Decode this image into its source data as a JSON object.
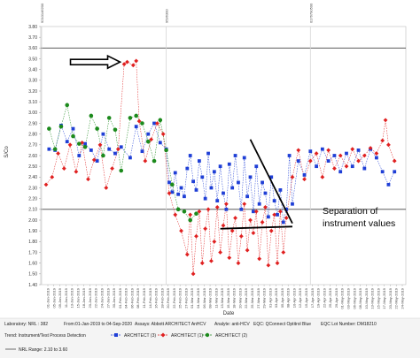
{
  "chart_data": {
    "type": "scatter",
    "xlabel": "Date",
    "ylabel": "S/Co",
    "ylim": [
      1.4,
      3.8
    ],
    "yticks": [
      "3.80",
      "3.70",
      "3.60",
      "3.50",
      "3.40",
      "3.30",
      "3.20",
      "3.10",
      "3.00",
      "2.90",
      "2.80",
      "2.70",
      "2.60",
      "2.50",
      "2.40",
      "2.30",
      "2.20",
      "2.10",
      "2.00",
      "1.90",
      "1.80",
      "1.70",
      "1.60",
      "1.50",
      "1.40"
    ],
    "reference_lines": [
      3.6,
      2.1
    ],
    "lot_markers": [
      {
        "label": "9210146200",
        "x_index": 0
      },
      {
        "label": "9536300",
        "x_index": 40
      },
      {
        "label": "0176790500",
        "x_index": 88
      }
    ],
    "xtick_labels": [
      "01-Jan-2019",
      "05-Jan-2019",
      "09-Jan-2019",
      "11-Jan-2019",
      "13-Jan-2019",
      "15-Jan-2019",
      "18-Jan-2019",
      "20-Jan-2019",
      "22-Jan-2019",
      "24-Jan-2019",
      "27-Jan-2019",
      "30-Jan-2019",
      "01-Feb-2019",
      "04-Feb-2019",
      "06-Feb-2019",
      "08-Feb-2019",
      "11-Feb-2019",
      "14-Feb-2019",
      "16-Feb-2019",
      "18-Feb-2019",
      "20-Feb-2019",
      "22-Feb-2019",
      "25-Feb-2019",
      "27-Feb-2019",
      "01-Mar-2019",
      "04-Mar-2019",
      "06-Mar-2019",
      "08-Mar-2019",
      "11-Mar-2019",
      "13-Mar-2019",
      "15-Mar-2019",
      "18-Mar-2019",
      "20-Mar-2019",
      "22-Mar-2019",
      "25-Mar-2019",
      "27-Mar-2019",
      "29-Mar-2019",
      "01-Apr-2019",
      "03-Apr-2019",
      "05-Apr-2019",
      "08-Apr-2019",
      "10-Apr-2019",
      "12-Apr-2019",
      "15-Apr-2019",
      "17-Apr-2019",
      "19-Apr-2019",
      "22-Apr-2019",
      "25-Apr-2019",
      "29-Apr-2019",
      "01-May-2019",
      "03-May-2019",
      "06-May-2019",
      "08-May-2019",
      "10-May-2019",
      "13-May-2019",
      "15-May-2019",
      "17-May-2019",
      "20-May-2019",
      "22-May-2019",
      "24-May-2019"
    ],
    "series": [
      {
        "name": "ARCHITECT (3)",
        "color": "#1f3fd6",
        "marker": "square",
        "points": [
          [
            1,
            2.66
          ],
          [
            3,
            2.65
          ],
          [
            5,
            2.88
          ],
          [
            7,
            2.73
          ],
          [
            9,
            2.85
          ],
          [
            11,
            2.6
          ],
          [
            13,
            2.71
          ],
          [
            15,
            2.65
          ],
          [
            17,
            2.55
          ],
          [
            19,
            2.8
          ],
          [
            21,
            2.66
          ],
          [
            23,
            2.62
          ],
          [
            25,
            2.68
          ],
          [
            28,
            2.58
          ],
          [
            30,
            2.87
          ],
          [
            32,
            2.64
          ],
          [
            34,
            2.8
          ],
          [
            36,
            2.9
          ],
          [
            38,
            2.72
          ],
          [
            40,
            2.66
          ],
          [
            41,
            2.35
          ],
          [
            42,
            2.26
          ],
          [
            43,
            2.44
          ],
          [
            44,
            2.24
          ],
          [
            45,
            2.3
          ],
          [
            46,
            2.22
          ],
          [
            47,
            2.48
          ],
          [
            48,
            2.6
          ],
          [
            49,
            2.36
          ],
          [
            50,
            2.28
          ],
          [
            51,
            2.55
          ],
          [
            52,
            2.4
          ],
          [
            53,
            2.2
          ],
          [
            54,
            2.62
          ],
          [
            55,
            2.3
          ],
          [
            56,
            2.45
          ],
          [
            57,
            2.18
          ],
          [
            58,
            2.5
          ],
          [
            59,
            2.25
          ],
          [
            60,
            2.1
          ],
          [
            61,
            2.52
          ],
          [
            62,
            2.3
          ],
          [
            63,
            2.6
          ],
          [
            64,
            2.35
          ],
          [
            65,
            2.1
          ],
          [
            66,
            2.58
          ],
          [
            67,
            2.22
          ],
          [
            68,
            2.4
          ],
          [
            69,
            2.08
          ],
          [
            70,
            2.5
          ],
          [
            71,
            2.15
          ],
          [
            72,
            2.35
          ],
          [
            73,
            2.25
          ],
          [
            74,
            2.03
          ],
          [
            75,
            2.4
          ],
          [
            76,
            2.18
          ],
          [
            77,
            2.05
          ],
          [
            78,
            2.28
          ],
          [
            79,
            1.98
          ],
          [
            80,
            2.1
          ],
          [
            81,
            2.6
          ],
          [
            82,
            2.15
          ],
          [
            84,
            2.55
          ],
          [
            86,
            2.42
          ],
          [
            88,
            2.64
          ],
          [
            90,
            2.5
          ],
          [
            92,
            2.66
          ],
          [
            94,
            2.55
          ],
          [
            96,
            2.6
          ],
          [
            98,
            2.45
          ],
          [
            100,
            2.62
          ],
          [
            102,
            2.5
          ],
          [
            104,
            2.65
          ],
          [
            106,
            2.48
          ],
          [
            108,
            2.66
          ],
          [
            110,
            2.58
          ],
          [
            112,
            2.45
          ],
          [
            114,
            2.33
          ],
          [
            116,
            2.45
          ]
        ]
      },
      {
        "name": "ARCHITECT (1)",
        "color": "#e02020",
        "marker": "diamond",
        "points": [
          [
            0,
            2.33
          ],
          [
            2,
            2.4
          ],
          [
            4,
            2.62
          ],
          [
            6,
            2.48
          ],
          [
            8,
            2.7
          ],
          [
            10,
            2.45
          ],
          [
            12,
            2.72
          ],
          [
            14,
            2.38
          ],
          [
            16,
            2.56
          ],
          [
            18,
            2.7
          ],
          [
            20,
            2.3
          ],
          [
            22,
            2.48
          ],
          [
            24,
            2.66
          ],
          [
            26,
            3.45
          ],
          [
            27,
            3.47
          ],
          [
            29,
            3.44
          ],
          [
            30,
            3.48
          ],
          [
            31,
            2.92
          ],
          [
            33,
            2.55
          ],
          [
            35,
            2.75
          ],
          [
            37,
            2.9
          ],
          [
            39,
            2.8
          ],
          [
            41,
            2.25
          ],
          [
            43,
            2.05
          ],
          [
            45,
            1.9
          ],
          [
            47,
            1.68
          ],
          [
            48,
            2.05
          ],
          [
            49,
            1.5
          ],
          [
            50,
            1.85
          ],
          [
            51,
            2.08
          ],
          [
            52,
            1.6
          ],
          [
            53,
            1.92
          ],
          [
            54,
            2.1
          ],
          [
            55,
            1.62
          ],
          [
            56,
            1.8
          ],
          [
            57,
            2.12
          ],
          [
            58,
            1.7
          ],
          [
            59,
            1.95
          ],
          [
            60,
            2.15
          ],
          [
            61,
            1.65
          ],
          [
            62,
            1.9
          ],
          [
            63,
            2.02
          ],
          [
            64,
            1.6
          ],
          [
            65,
            1.85
          ],
          [
            66,
            2.15
          ],
          [
            67,
            1.72
          ],
          [
            68,
            2.0
          ],
          [
            69,
            1.88
          ],
          [
            70,
            2.08
          ],
          [
            71,
            1.64
          ],
          [
            72,
            1.98
          ],
          [
            73,
            2.12
          ],
          [
            74,
            1.58
          ],
          [
            75,
            1.9
          ],
          [
            76,
            2.05
          ],
          [
            77,
            1.6
          ],
          [
            78,
            2.08
          ],
          [
            79,
            1.7
          ],
          [
            80,
            2.02
          ],
          [
            82,
            2.4
          ],
          [
            84,
            2.65
          ],
          [
            86,
            2.38
          ],
          [
            88,
            2.55
          ],
          [
            90,
            2.62
          ],
          [
            92,
            2.4
          ],
          [
            94,
            2.65
          ],
          [
            96,
            2.48
          ],
          [
            98,
            2.6
          ],
          [
            100,
            2.5
          ],
          [
            102,
            2.66
          ],
          [
            104,
            2.55
          ],
          [
            106,
            2.6
          ],
          [
            108,
            2.67
          ],
          [
            110,
            2.62
          ],
          [
            112,
            2.74
          ],
          [
            113,
            2.93
          ],
          [
            114,
            2.7
          ],
          [
            116,
            2.55
          ]
        ]
      },
      {
        "name": "ARCHITECT (2)",
        "color": "#1c8a1c",
        "marker": "circle",
        "points": [
          [
            1,
            2.85
          ],
          [
            3,
            2.66
          ],
          [
            5,
            2.87
          ],
          [
            7,
            3.07
          ],
          [
            9,
            2.78
          ],
          [
            11,
            2.71
          ],
          [
            13,
            2.68
          ],
          [
            15,
            2.97
          ],
          [
            17,
            2.85
          ],
          [
            19,
            2.6
          ],
          [
            21,
            2.95
          ],
          [
            23,
            2.84
          ],
          [
            25,
            2.46
          ],
          [
            28,
            2.95
          ],
          [
            30,
            2.97
          ],
          [
            32,
            2.9
          ],
          [
            34,
            2.73
          ],
          [
            36,
            2.55
          ],
          [
            38,
            2.93
          ],
          [
            40,
            2.65
          ],
          [
            42,
            2.33
          ],
          [
            44,
            2.1
          ],
          [
            46,
            2.08
          ],
          [
            48,
            2.0
          ],
          [
            50,
            2.06
          ]
        ]
      }
    ],
    "annotations": [
      {
        "text": "Separation of"
      },
      {
        "text": "instrument values"
      }
    ],
    "arrow": {
      "x_index": 27,
      "y": 3.47
    }
  },
  "footer": {
    "laboratory": "Laboratory: NRL : 382",
    "date_range": "From:01-Jan-2019 to 04-Sep-2020",
    "assays": "Assays: Abbott ARCHITECT AnHCV",
    "analyte": "Analyte: anti-HCV",
    "eqc": "EQC: QConnect Optitrol Blue",
    "eqc_lot": "EQC Lot Number: DM18210",
    "trend": "Trend: Instrument/Test Process Detection",
    "nrl_range": "NRL Range: 2.10 to 3.60"
  }
}
